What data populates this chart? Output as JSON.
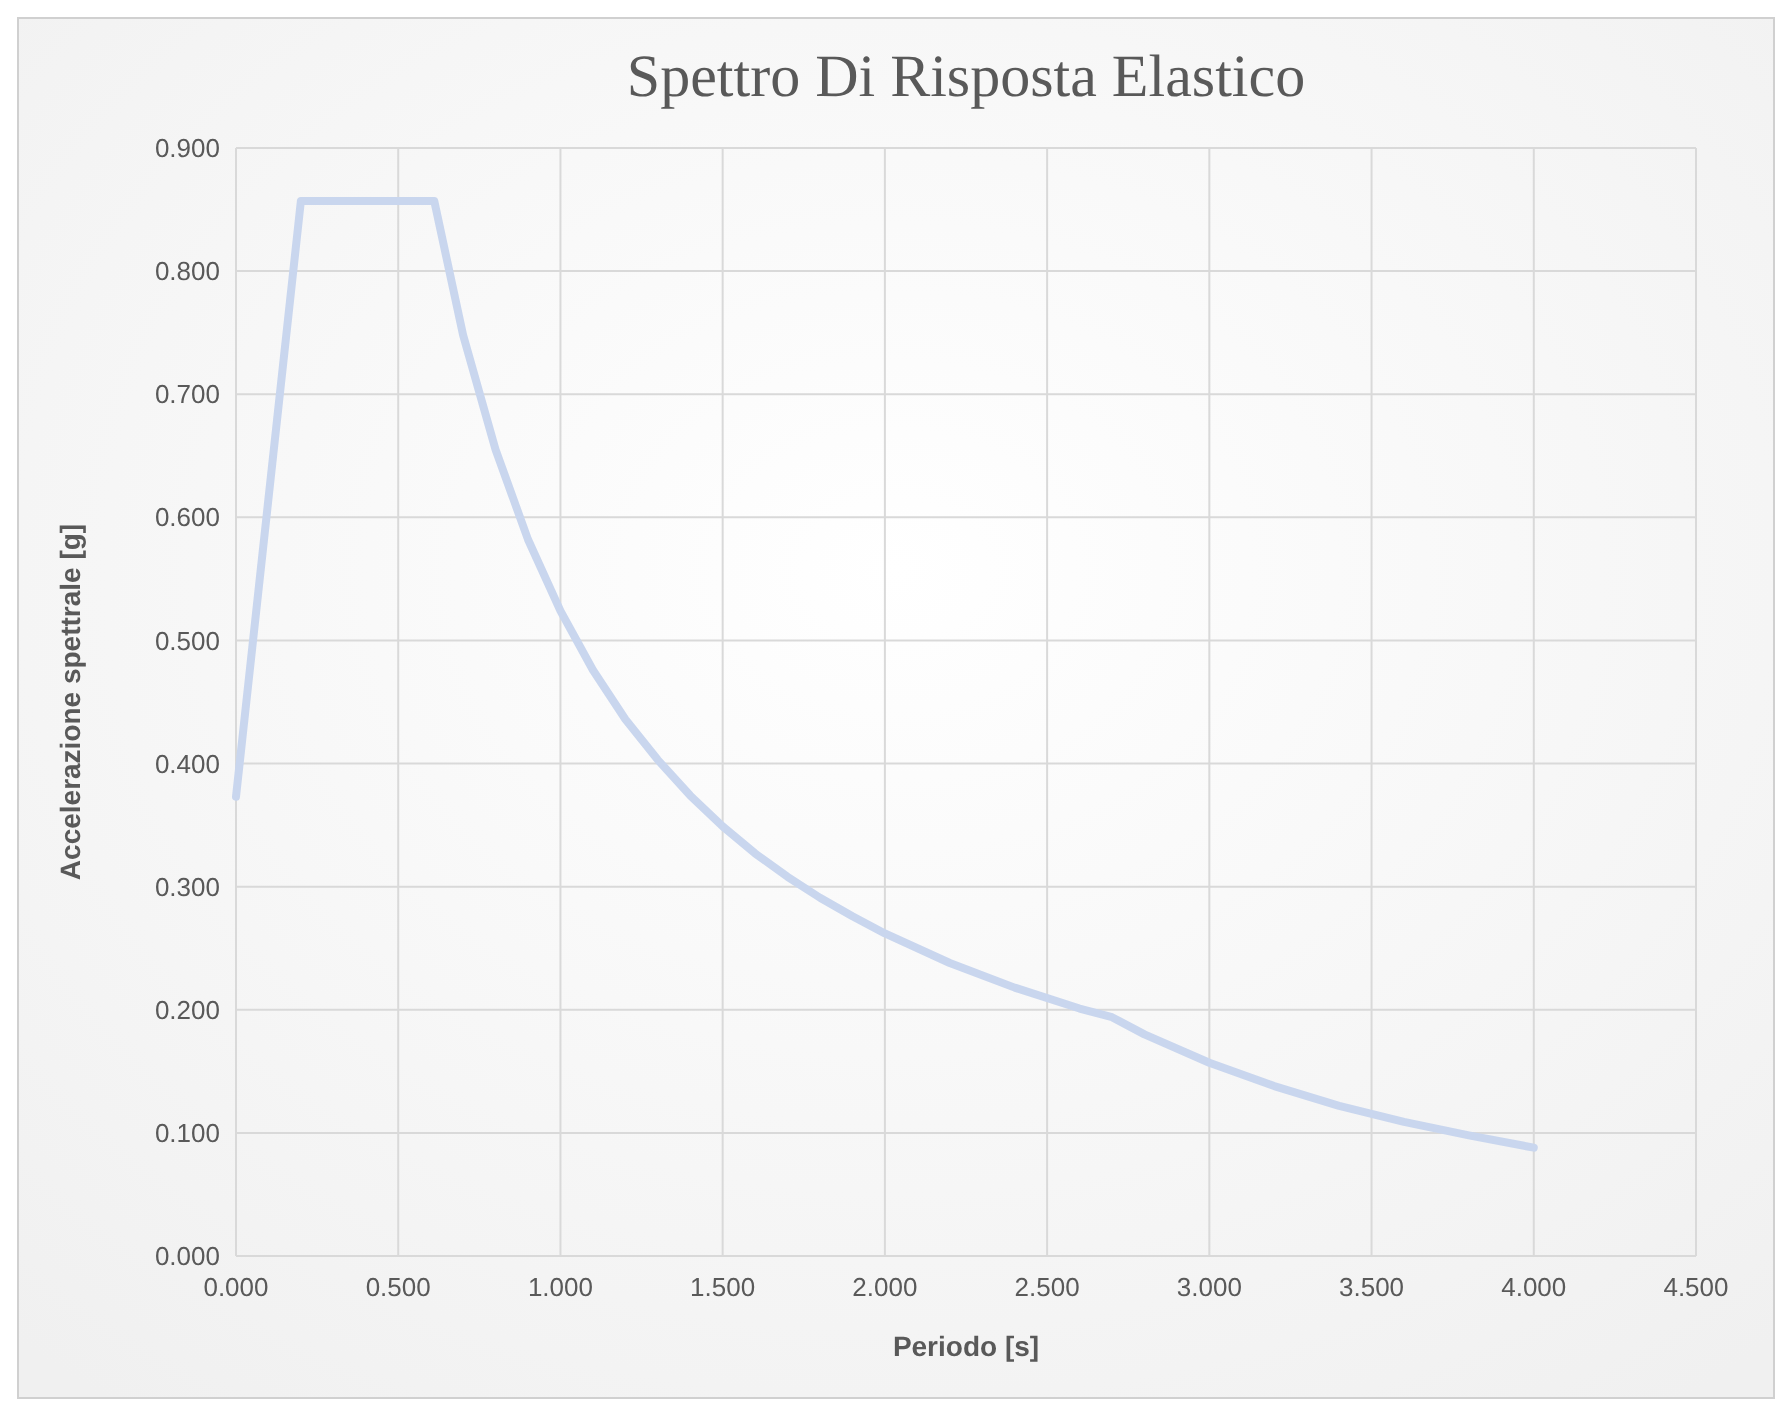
{
  "chart_data": {
    "type": "line",
    "title": "Spettro Di Risposta Elastico",
    "xlabel": "Periodo [s]",
    "ylabel": "Accelerazione spettrale [g]",
    "x": [
      0,
      0.2,
      0.611,
      0.7,
      0.8,
      0.9,
      1.0,
      1.1,
      1.2,
      1.3,
      1.4,
      1.5,
      1.6,
      1.7,
      1.8,
      1.9,
      2.0,
      2.2,
      2.4,
      2.6,
      2.7,
      2.8,
      3.0,
      3.2,
      3.4,
      3.6,
      3.8,
      4.0
    ],
    "series": [
      {
        "color": "#c9d6ee",
        "values": [
          0.373,
          0.857,
          0.857,
          0.748,
          0.655,
          0.582,
          0.524,
          0.476,
          0.436,
          0.403,
          0.374,
          0.349,
          0.327,
          0.308,
          0.291,
          0.276,
          0.262,
          0.238,
          0.218,
          0.201,
          0.194,
          0.18,
          0.157,
          0.138,
          0.122,
          0.109,
          0.098,
          0.088
        ]
      }
    ],
    "xlim": [
      0,
      4.5
    ],
    "ylim": [
      0,
      0.9
    ],
    "xticks": [
      {
        "value": 0,
        "label": "0.000"
      },
      {
        "value": 0.5,
        "label": "0.500"
      },
      {
        "value": 1,
        "label": "1.000"
      },
      {
        "value": 1.5,
        "label": "1.500"
      },
      {
        "value": 2,
        "label": "2.000"
      },
      {
        "value": 2.5,
        "label": "2.500"
      },
      {
        "value": 3,
        "label": "3.000"
      },
      {
        "value": 3.5,
        "label": "3.500"
      },
      {
        "value": 4,
        "label": "4.000"
      },
      {
        "value": 4.5,
        "label": "4.500"
      }
    ],
    "yticks": [
      {
        "value": 0,
        "label": "0.000"
      },
      {
        "value": 0.1,
        "label": "0.100"
      },
      {
        "value": 0.2,
        "label": "0.200"
      },
      {
        "value": 0.3,
        "label": "0.300"
      },
      {
        "value": 0.4,
        "label": "0.400"
      },
      {
        "value": 0.5,
        "label": "0.500"
      },
      {
        "value": 0.6,
        "label": "0.600"
      },
      {
        "value": 0.7,
        "label": "0.700"
      },
      {
        "value": 0.8,
        "label": "0.800"
      },
      {
        "value": 0.9,
        "label": "0.900"
      }
    ],
    "grid": true,
    "marker": "none",
    "line_style": "solid"
  }
}
